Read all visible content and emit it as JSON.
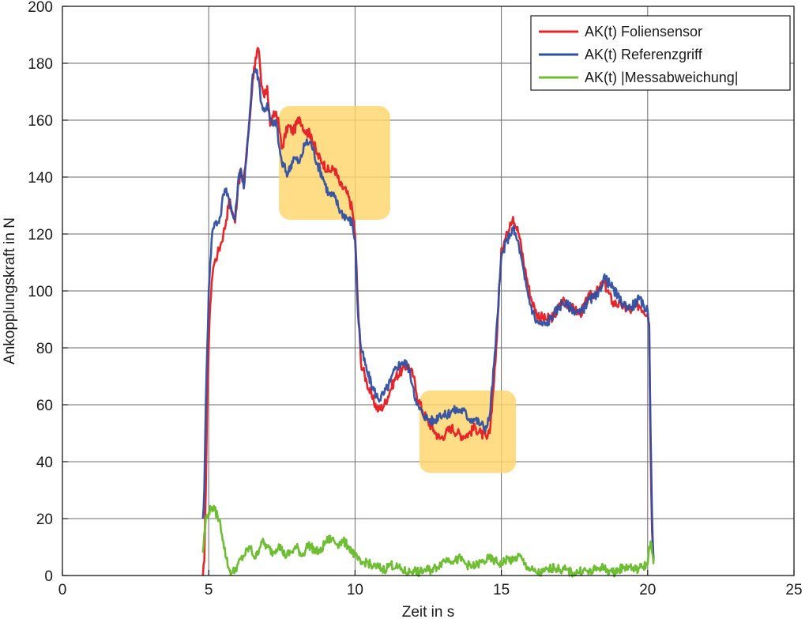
{
  "chart_data": {
    "type": "line",
    "xlabel": "Zeit in s",
    "ylabel": "Ankopplungskraft in N",
    "xlim": [
      0,
      25
    ],
    "ylim": [
      0,
      200
    ],
    "xticks": [
      0,
      5,
      10,
      15,
      20,
      25
    ],
    "yticks": [
      0,
      20,
      40,
      60,
      80,
      100,
      120,
      140,
      160,
      180,
      200
    ],
    "grid": true,
    "legend_position": "top-right",
    "highlight_color": "#FFD56B",
    "highlights": [
      {
        "x": [
          7.4,
          11.2
        ],
        "y": [
          125,
          165
        ]
      },
      {
        "x": [
          12.2,
          15.5
        ],
        "y": [
          36,
          65
        ]
      }
    ],
    "series": [
      {
        "name": "AK(t) Foliensensor",
        "color": "#E8262A",
        "x": [
          4.8,
          4.85,
          4.9,
          4.95,
          5.0,
          5.05,
          5.1,
          5.15,
          5.2,
          5.3,
          5.4,
          5.5,
          5.6,
          5.7,
          5.8,
          5.9,
          6.0,
          6.1,
          6.2,
          6.3,
          6.4,
          6.5,
          6.6,
          6.7,
          6.8,
          6.9,
          7.0,
          7.1,
          7.2,
          7.3,
          7.4,
          7.5,
          7.7,
          7.9,
          8.1,
          8.3,
          8.5,
          8.7,
          8.9,
          9.1,
          9.3,
          9.5,
          9.7,
          9.9,
          10.0,
          10.1,
          10.2,
          10.4,
          10.6,
          10.8,
          11.0,
          11.2,
          11.4,
          11.6,
          11.8,
          12.0,
          12.1,
          12.3,
          12.5,
          12.7,
          12.9,
          13.1,
          13.3,
          13.5,
          13.7,
          13.9,
          14.1,
          14.3,
          14.5,
          14.6,
          14.8,
          15.0,
          15.2,
          15.3,
          15.4,
          15.6,
          15.8,
          16.0,
          16.2,
          16.5,
          16.8,
          17.1,
          17.4,
          17.7,
          18.0,
          18.3,
          18.5,
          18.8,
          19.1,
          19.4,
          19.7,
          20.0,
          20.05,
          20.1,
          20.15,
          20.2
        ],
        "y": [
          0,
          5,
          30,
          62,
          80,
          95,
          103,
          108,
          110,
          113,
          116,
          120,
          125,
          132,
          128,
          124,
          137,
          142,
          138,
          150,
          160,
          174,
          182,
          185,
          172,
          168,
          172,
          158,
          161,
          163,
          158,
          150,
          158,
          156,
          161,
          156,
          155,
          148,
          145,
          142,
          143,
          137,
          135,
          129,
          120,
          95,
          75,
          68,
          62,
          58,
          60,
          65,
          70,
          72,
          74,
          70,
          64,
          58,
          54,
          51,
          48,
          50,
          52,
          50,
          49,
          50,
          52,
          50,
          48,
          50,
          75,
          115,
          120,
          124,
          126,
          120,
          108,
          98,
          92,
          90,
          91,
          97,
          94,
          92,
          98,
          100,
          103,
          96,
          95,
          93,
          95,
          92,
          88,
          45,
          15,
          5
        ]
      },
      {
        "name": "AK(t) Referenzgriff",
        "color": "#2F4FA2",
        "x": [
          4.8,
          4.85,
          4.9,
          4.95,
          5.0,
          5.05,
          5.1,
          5.15,
          5.2,
          5.3,
          5.4,
          5.5,
          5.6,
          5.7,
          5.8,
          5.9,
          6.0,
          6.1,
          6.2,
          6.3,
          6.4,
          6.5,
          6.6,
          6.7,
          6.8,
          6.9,
          7.0,
          7.1,
          7.2,
          7.3,
          7.4,
          7.5,
          7.7,
          7.9,
          8.1,
          8.3,
          8.5,
          8.7,
          8.9,
          9.1,
          9.3,
          9.5,
          9.7,
          9.9,
          10.0,
          10.1,
          10.2,
          10.4,
          10.6,
          10.8,
          11.0,
          11.2,
          11.4,
          11.6,
          11.8,
          12.0,
          12.1,
          12.3,
          12.5,
          12.7,
          12.9,
          13.1,
          13.3,
          13.5,
          13.7,
          13.9,
          14.1,
          14.3,
          14.5,
          14.6,
          14.8,
          15.0,
          15.2,
          15.3,
          15.4,
          15.6,
          15.8,
          16.0,
          16.2,
          16.5,
          16.8,
          17.1,
          17.4,
          17.7,
          18.0,
          18.3,
          18.5,
          18.8,
          19.1,
          19.4,
          19.7,
          20.0,
          20.05,
          20.1,
          20.15,
          20.2
        ],
        "y": [
          20,
          30,
          60,
          80,
          100,
          110,
          118,
          122,
          124,
          124,
          126,
          134,
          136,
          132,
          127,
          125,
          138,
          143,
          136,
          148,
          162,
          176,
          178,
          175,
          166,
          163,
          166,
          160,
          158,
          160,
          151,
          145,
          141,
          147,
          145,
          152,
          152,
          145,
          140,
          134,
          133,
          128,
          126,
          124,
          118,
          92,
          80,
          72,
          66,
          62,
          64,
          68,
          73,
          75,
          74,
          66,
          60,
          57,
          55,
          54,
          57,
          56,
          58,
          58,
          58,
          55,
          55,
          53,
          52,
          56,
          80,
          112,
          118,
          120,
          122,
          116,
          104,
          95,
          89,
          88,
          92,
          96,
          94,
          92,
          97,
          98,
          105,
          101,
          96,
          94,
          97,
          93,
          88,
          50,
          20,
          6
        ]
      },
      {
        "name": "AK(t) |Messabweichung|",
        "color": "#6DBE32",
        "x": [
          4.8,
          4.9,
          5.0,
          5.1,
          5.2,
          5.3,
          5.4,
          5.5,
          5.6,
          5.7,
          5.8,
          5.9,
          6.0,
          6.2,
          6.4,
          6.6,
          6.8,
          7.0,
          7.2,
          7.4,
          7.6,
          7.8,
          8.0,
          8.2,
          8.4,
          8.6,
          8.8,
          9.0,
          9.2,
          9.4,
          9.6,
          9.8,
          10.0,
          10.2,
          10.4,
          10.6,
          10.8,
          11.0,
          11.2,
          11.4,
          11.6,
          11.8,
          12.0,
          12.2,
          12.4,
          12.6,
          12.8,
          13.0,
          13.2,
          13.4,
          13.6,
          13.8,
          14.0,
          14.2,
          14.4,
          14.6,
          14.8,
          15.0,
          15.2,
          15.4,
          15.6,
          15.8,
          16.0,
          16.2,
          16.4,
          16.6,
          16.8,
          17.0,
          17.2,
          17.4,
          17.6,
          17.8,
          18.0,
          18.2,
          18.4,
          18.6,
          18.8,
          19.0,
          19.2,
          19.4,
          19.6,
          19.8,
          20.0,
          20.05,
          20.1,
          20.15,
          20.2
        ],
        "y": [
          8,
          20,
          22,
          24,
          23,
          21,
          18,
          12,
          6,
          2,
          1,
          2,
          4,
          7,
          10,
          6,
          12,
          10,
          8,
          11,
          7,
          8,
          10,
          7,
          11,
          9,
          8,
          12,
          13,
          11,
          12,
          10,
          7,
          4,
          5,
          3,
          3,
          2,
          4,
          3,
          2,
          1,
          2,
          1,
          2,
          2,
          3,
          5,
          6,
          5,
          6,
          4,
          3,
          4,
          5,
          6,
          5,
          4,
          6,
          5,
          7,
          4,
          2,
          1,
          1,
          2,
          3,
          2,
          2,
          1,
          1,
          2,
          1,
          2,
          3,
          2,
          1,
          2,
          3,
          3,
          2,
          3,
          4,
          10,
          12,
          8,
          4
        ]
      }
    ]
  }
}
